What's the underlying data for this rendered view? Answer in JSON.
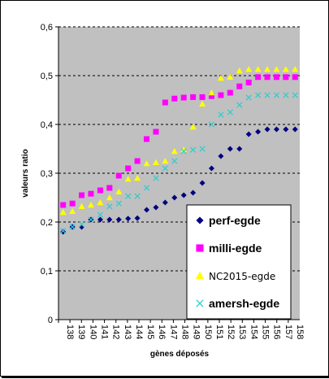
{
  "chart_data": {
    "type": "scatter",
    "title": "",
    "xlabel": "gènes déposés",
    "ylabel": "valeurs ratio",
    "categories": [
      "138",
      "139",
      "140",
      "141",
      "141",
      "142",
      "143",
      "143",
      "144",
      "145",
      "146",
      "146",
      "147",
      "148",
      "149",
      "150",
      "151",
      "151",
      "152",
      "153",
      "154",
      "155",
      "156",
      "156",
      "157",
      "158"
    ],
    "x_tick_labels": [
      "138",
      "139",
      "140",
      "141",
      "142",
      "143",
      "144",
      "145",
      "146",
      "147",
      "148",
      "149",
      "150",
      "151",
      "152",
      "153",
      "154",
      "155",
      "156",
      "157",
      "158"
    ],
    "ylim": [
      0,
      0.6
    ],
    "y_ticks": [
      "0",
      "0,1",
      "0,2",
      "0,3",
      "0,4",
      "0,5",
      "0,6"
    ],
    "y_tick_values": [
      0,
      0.1,
      0.2,
      0.3,
      0.4,
      0.5,
      0.6
    ],
    "grid": "horizontal dashed",
    "legend_position": "bottom-right",
    "series": [
      {
        "name": "perf-egde",
        "marker": "diamond",
        "color": "#000080",
        "values": [
          0.18,
          0.19,
          0.19,
          0.205,
          0.205,
          0.205,
          0.205,
          0.207,
          0.208,
          0.225,
          0.23,
          0.24,
          0.25,
          0.255,
          0.26,
          0.28,
          0.31,
          0.335,
          0.35,
          0.35,
          0.38,
          0.385,
          0.39,
          0.39,
          0.39,
          0.39
        ]
      },
      {
        "name": "milli-egde",
        "marker": "square",
        "color": "#ff00ff",
        "values": [
          0.235,
          0.238,
          0.255,
          0.258,
          0.265,
          0.27,
          0.295,
          0.31,
          0.325,
          0.37,
          0.385,
          0.445,
          0.453,
          0.455,
          0.456,
          0.456,
          0.458,
          0.46,
          0.465,
          0.478,
          0.486,
          0.497,
          0.497,
          0.497,
          0.497,
          0.497
        ]
      },
      {
        "name": "NC2015-egde",
        "marker": "triangle",
        "color": "#ffff00",
        "values": [
          0.22,
          0.222,
          0.232,
          0.235,
          0.24,
          0.25,
          0.262,
          0.288,
          0.29,
          0.32,
          0.322,
          0.325,
          0.345,
          0.348,
          0.395,
          0.442,
          0.465,
          0.495,
          0.497,
          0.51,
          0.513,
          0.513,
          0.513,
          0.513,
          0.513,
          0.513
        ]
      },
      {
        "name": "amersh-egde",
        "marker": "x",
        "color": "#33cccc",
        "values": [
          0.182,
          0.19,
          0.195,
          0.205,
          0.215,
          0.232,
          0.238,
          0.253,
          0.253,
          0.27,
          0.29,
          0.31,
          0.325,
          0.345,
          0.348,
          0.35,
          0.4,
          0.42,
          0.425,
          0.44,
          0.455,
          0.46,
          0.46,
          0.46,
          0.46,
          0.46
        ]
      }
    ]
  }
}
